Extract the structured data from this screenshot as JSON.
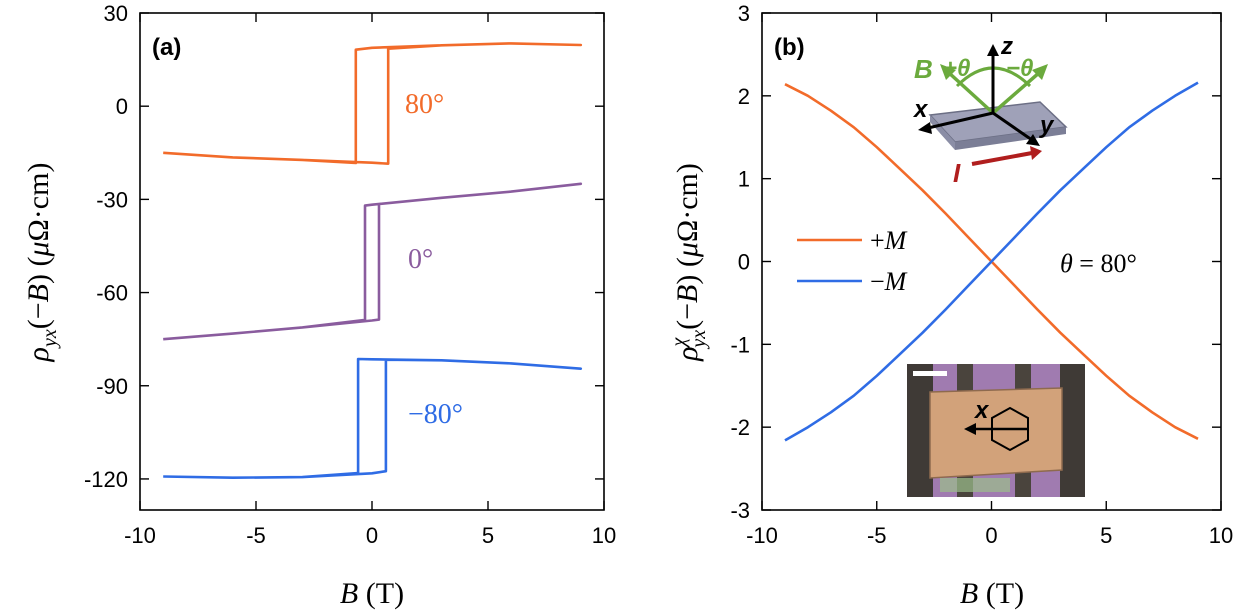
{
  "colors": {
    "orange": "#F26B2A",
    "purple": "#8A5C9E",
    "blue": "#2F6CE5",
    "green": "#6BAA3D",
    "darkred": "#B01E1E"
  },
  "chart_data": [
    {
      "panel": "(a)",
      "type": "line",
      "xlabel": "B (T)",
      "ylabel": "ρyx(−B) (μΩ·cm)",
      "xlim": [
        -10,
        10
      ],
      "ylim": [
        -130,
        30
      ],
      "xticks": [
        "-10",
        "-5",
        "0",
        "5",
        "10"
      ],
      "yticks": [
        "30",
        "0",
        "-30",
        "-60",
        "-90",
        "-120"
      ],
      "series": [
        {
          "name": "80°",
          "color": "#F26B2A",
          "loop": [
            [
              -9,
              -15
            ],
            [
              -6,
              -16.5
            ],
            [
              -3,
              -17.3
            ],
            [
              0,
              -18.2
            ],
            [
              0.7,
              -18.5
            ],
            [
              0.7,
              18.5
            ],
            [
              3,
              19.6
            ],
            [
              6,
              20.2
            ],
            [
              9,
              19.7
            ],
            [
              6,
              20.2
            ],
            [
              3,
              19.6
            ],
            [
              0,
              18.8
            ],
            [
              -0.7,
              18.2
            ],
            [
              -0.7,
              -18.3
            ],
            [
              -3,
              -17.3
            ],
            [
              -6,
              -16.5
            ],
            [
              -9,
              -15
            ]
          ]
        },
        {
          "name": "0°",
          "color": "#8A5C9E",
          "loop": [
            [
              -9,
              -75
            ],
            [
              -6,
              -73.2
            ],
            [
              -3,
              -71.2
            ],
            [
              0,
              -69
            ],
            [
              0.3,
              -68.7
            ],
            [
              0.3,
              -31.5
            ],
            [
              3,
              -29.5
            ],
            [
              6,
              -27.5
            ],
            [
              9,
              -25
            ],
            [
              6,
              -27.5
            ],
            [
              3,
              -29.5
            ],
            [
              0,
              -31.7
            ],
            [
              -0.3,
              -32
            ],
            [
              -0.3,
              -68.8
            ],
            [
              -3,
              -71.2
            ],
            [
              -6,
              -73.2
            ],
            [
              -9,
              -75
            ]
          ]
        },
        {
          "name": "−80°",
          "color": "#2F6CE5",
          "loop": [
            [
              -9,
              -119.2
            ],
            [
              -6,
              -119.6
            ],
            [
              -3,
              -119.4
            ],
            [
              0,
              -118.2
            ],
            [
              0.6,
              -117.5
            ],
            [
              0.6,
              -81.6
            ],
            [
              3,
              -81.8
            ],
            [
              6,
              -82.8
            ],
            [
              9,
              -84.5
            ],
            [
              6,
              -82.8
            ],
            [
              3,
              -81.8
            ],
            [
              0,
              -81.5
            ],
            [
              -0.6,
              -81.4
            ],
            [
              -0.6,
              -118.1
            ],
            [
              -3,
              -119.4
            ],
            [
              -6,
              -119.6
            ],
            [
              -9,
              -119.2
            ]
          ]
        }
      ]
    },
    {
      "panel": "(b)",
      "type": "line",
      "xlabel": "B (T)",
      "ylabel": "ρyxχ(−B) (μΩ·cm)",
      "xlim": [
        -10,
        10
      ],
      "ylim": [
        -3,
        3
      ],
      "xticks": [
        "-10",
        "-5",
        "0",
        "5",
        "10"
      ],
      "yticks": [
        "3",
        "2",
        "1",
        "0",
        "-1",
        "-2",
        "-3"
      ],
      "annotation": "θ = 80°",
      "series": [
        {
          "name": "+M",
          "color": "#F26B2A",
          "x": [
            -9,
            -8,
            -7,
            -6,
            -5,
            -4,
            -3,
            -2,
            -1,
            0,
            1,
            2,
            3,
            4,
            5,
            6,
            7,
            8,
            9
          ],
          "y": [
            2.14,
            2.0,
            1.82,
            1.62,
            1.38,
            1.12,
            0.86,
            0.58,
            0.29,
            0.0,
            -0.29,
            -0.58,
            -0.86,
            -1.12,
            -1.38,
            -1.62,
            -1.82,
            -2.0,
            -2.14
          ]
        },
        {
          "name": "−M",
          "color": "#2F6CE5",
          "x": [
            -9,
            -8,
            -7,
            -6,
            -5,
            -4,
            -3,
            -2,
            -1,
            0,
            1,
            2,
            3,
            4,
            5,
            6,
            7,
            8,
            9
          ],
          "y": [
            -2.16,
            -2.0,
            -1.82,
            -1.62,
            -1.38,
            -1.12,
            -0.86,
            -0.58,
            -0.29,
            0.0,
            0.29,
            0.58,
            0.86,
            1.12,
            1.38,
            1.62,
            1.82,
            2.0,
            2.16
          ]
        }
      ],
      "inset_schematic": {
        "labels": {
          "z": "z",
          "x": "x",
          "y": "y",
          "B": "B",
          "plus_theta": "+θ",
          "minus_theta": "−θ",
          "I": "I"
        }
      },
      "inset_image": {
        "labels": {
          "x": "x"
        }
      }
    }
  ]
}
